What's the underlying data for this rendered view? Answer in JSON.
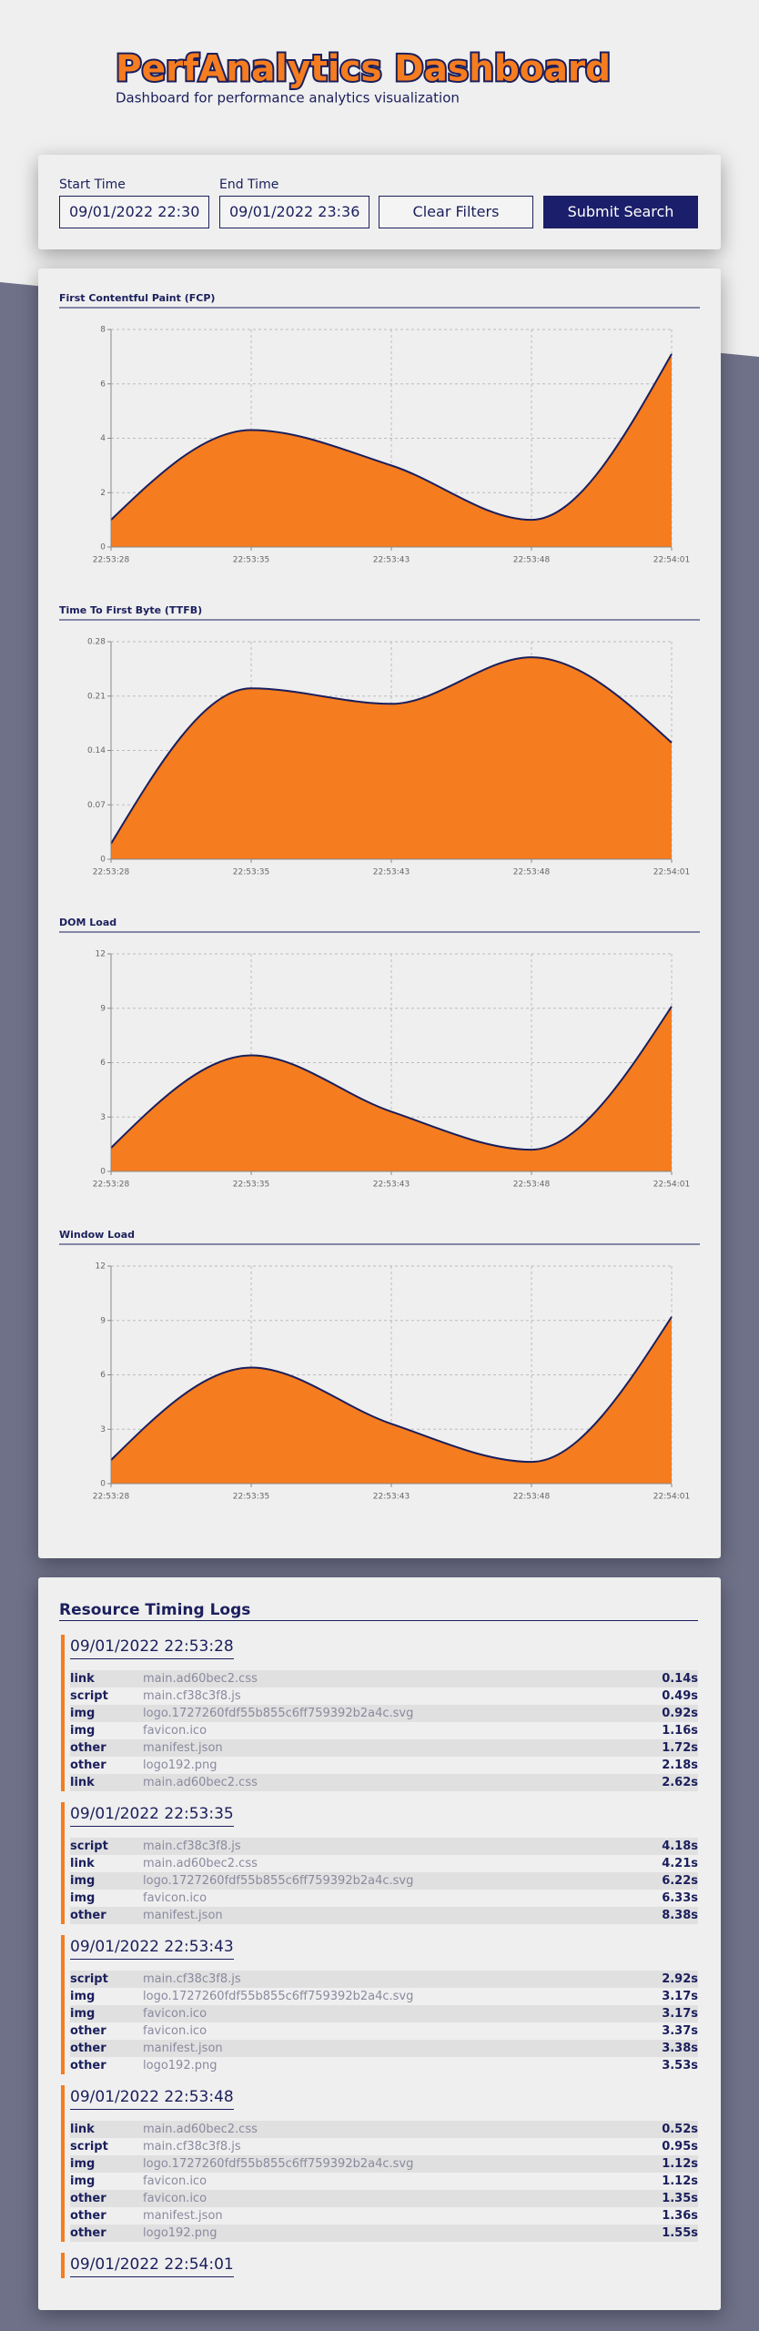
{
  "header": {
    "title": "PerfAnalytics Dashboard",
    "subtitle": "Dashboard for performance analytics visualization"
  },
  "filters": {
    "start_label": "Start Time",
    "start_value": "09/01/2022 22:30",
    "end_label": "End Time",
    "end_value": "09/01/2022 23:36",
    "clear_button": "Clear Filters",
    "submit_button": "Submit Search"
  },
  "chart_data": [
    {
      "type": "area",
      "title": "First Contentful Paint (FCP)",
      "categories": [
        "22:53:28",
        "22:53:35",
        "22:53:43",
        "22:53:48",
        "22:54:01"
      ],
      "values": [
        1,
        4.3,
        3.0,
        1,
        7.1
      ],
      "color": "#f57c1f",
      "line_color": "#1b1f5c",
      "ylim": [
        0,
        8
      ],
      "yticks": [
        0,
        2,
        4,
        6,
        8
      ],
      "grid": true
    },
    {
      "type": "area",
      "title": "Time To First Byte (TTFB)",
      "categories": [
        "22:53:28",
        "22:53:35",
        "22:53:43",
        "22:53:48",
        "22:54:01"
      ],
      "values": [
        0.02,
        0.22,
        0.2,
        0.26,
        0.15
      ],
      "color": "#f57c1f",
      "line_color": "#1b1f5c",
      "ylim": [
        0,
        0.28
      ],
      "yticks": [
        0,
        0.07,
        0.14,
        0.21,
        0.28
      ],
      "grid": true
    },
    {
      "type": "area",
      "title": "DOM Load",
      "categories": [
        "22:53:28",
        "22:53:35",
        "22:53:43",
        "22:53:48",
        "22:54:01"
      ],
      "values": [
        1.3,
        6.4,
        3.3,
        1.2,
        9.1
      ],
      "color": "#f57c1f",
      "line_color": "#1b1f5c",
      "ylim": [
        0,
        12
      ],
      "yticks": [
        0,
        3,
        6,
        9,
        12
      ],
      "grid": true
    },
    {
      "type": "area",
      "title": "Window Load",
      "categories": [
        "22:53:28",
        "22:53:35",
        "22:53:43",
        "22:53:48",
        "22:54:01"
      ],
      "values": [
        1.3,
        6.4,
        3.3,
        1.2,
        9.2
      ],
      "color": "#f57c1f",
      "line_color": "#1b1f5c",
      "ylim": [
        0,
        12
      ],
      "yticks": [
        0,
        3,
        6,
        9,
        12
      ],
      "grid": true
    }
  ],
  "logs": {
    "title": "Resource Timing Logs",
    "groups": [
      {
        "time": "09/01/2022 22:53:28",
        "entries": [
          [
            "link",
            "main.ad60bec2.css",
            "0.14s"
          ],
          [
            "script",
            "main.cf38c3f8.js",
            "0.49s"
          ],
          [
            "img",
            "logo.1727260fdf55b855c6ff759392b2a4c.svg",
            "0.92s"
          ],
          [
            "img",
            "favicon.ico",
            "1.16s"
          ],
          [
            "other",
            "manifest.json",
            "1.72s"
          ],
          [
            "other",
            "logo192.png",
            "2.18s"
          ],
          [
            "link",
            "main.ad60bec2.css",
            "2.62s"
          ]
        ]
      },
      {
        "time": "09/01/2022 22:53:35",
        "entries": [
          [
            "script",
            "main.cf38c3f8.js",
            "4.18s"
          ],
          [
            "link",
            "main.ad60bec2.css",
            "4.21s"
          ],
          [
            "img",
            "logo.1727260fdf55b855c6ff759392b2a4c.svg",
            "6.22s"
          ],
          [
            "img",
            "favicon.ico",
            "6.33s"
          ],
          [
            "other",
            "manifest.json",
            "8.38s"
          ]
        ]
      },
      {
        "time": "09/01/2022 22:53:43",
        "entries": [
          [
            "script",
            "main.cf38c3f8.js",
            "2.92s"
          ],
          [
            "img",
            "logo.1727260fdf55b855c6ff759392b2a4c.svg",
            "3.17s"
          ],
          [
            "img",
            "favicon.ico",
            "3.17s"
          ],
          [
            "other",
            "favicon.ico",
            "3.37s"
          ],
          [
            "other",
            "manifest.json",
            "3.38s"
          ],
          [
            "other",
            "logo192.png",
            "3.53s"
          ]
        ]
      },
      {
        "time": "09/01/2022 22:53:48",
        "entries": [
          [
            "link",
            "main.ad60bec2.css",
            "0.52s"
          ],
          [
            "script",
            "main.cf38c3f8.js",
            "0.95s"
          ],
          [
            "img",
            "logo.1727260fdf55b855c6ff759392b2a4c.svg",
            "1.12s"
          ],
          [
            "img",
            "favicon.ico",
            "1.12s"
          ],
          [
            "other",
            "favicon.ico",
            "1.35s"
          ],
          [
            "other",
            "manifest.json",
            "1.36s"
          ],
          [
            "other",
            "logo192.png",
            "1.55s"
          ]
        ]
      },
      {
        "time": "09/01/2022 22:54:01",
        "entries": []
      }
    ]
  }
}
